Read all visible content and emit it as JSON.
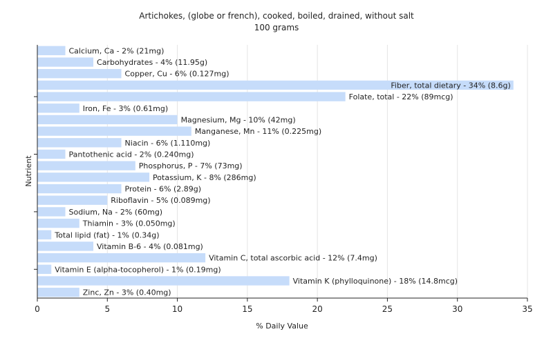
{
  "chart_data": {
    "type": "bar",
    "orientation": "horizontal",
    "title": "Artichokes, (globe or french), cooked, boiled, drained, without salt",
    "subtitle": "100 grams",
    "xlabel": "% Daily Value",
    "ylabel": "Nutrient",
    "xlim": [
      0,
      35
    ],
    "xticks": [
      0,
      5,
      10,
      15,
      20,
      25,
      30,
      35
    ],
    "grid": true,
    "bar_color": "#c6dcfa",
    "categories": [
      "Calcium, Ca",
      "Carbohydrates",
      "Copper, Cu",
      "Fiber, total dietary",
      "Folate, total",
      "Iron, Fe",
      "Magnesium, Mg",
      "Manganese, Mn",
      "Niacin",
      "Pantothenic acid",
      "Phosphorus, P",
      "Potassium, K",
      "Protein",
      "Riboflavin",
      "Sodium, Na",
      "Thiamin",
      "Total lipid (fat)",
      "Vitamin B-6",
      "Vitamin C, total ascorbic acid",
      "Vitamin E (alpha-tocopherol)",
      "Vitamin K (phylloquinone)",
      "Zinc, Zn"
    ],
    "values": [
      2,
      4,
      6,
      34,
      22,
      3,
      10,
      11,
      6,
      2,
      7,
      8,
      6,
      5,
      2,
      3,
      1,
      4,
      12,
      1,
      18,
      3
    ],
    "labels": [
      "Calcium, Ca - 2% (21mg)",
      "Carbohydrates - 4% (11.95g)",
      "Copper, Cu - 6% (0.127mg)",
      "Fiber, total dietary - 34% (8.6g)",
      "Folate, total - 22% (89mcg)",
      "Iron, Fe - 3% (0.61mg)",
      "Magnesium, Mg - 10% (42mg)",
      "Manganese, Mn - 11% (0.225mg)",
      "Niacin - 6% (1.110mg)",
      "Pantothenic acid - 2% (0.240mg)",
      "Phosphorus, P - 7% (73mg)",
      "Potassium, K - 8% (286mg)",
      "Protein - 6% (2.89g)",
      "Riboflavin - 5% (0.089mg)",
      "Sodium, Na - 2% (60mg)",
      "Thiamin - 3% (0.050mg)",
      "Total lipid (fat) - 1% (0.34g)",
      "Vitamin B-6 - 4% (0.081mg)",
      "Vitamin C, total ascorbic acid - 12% (7.4mg)",
      "Vitamin E (alpha-tocopherol) - 1% (0.19mg)",
      "Vitamin K (phylloquinone) - 18% (14.8mcg)",
      "Zinc, Zn - 3% (0.40mg)"
    ]
  }
}
